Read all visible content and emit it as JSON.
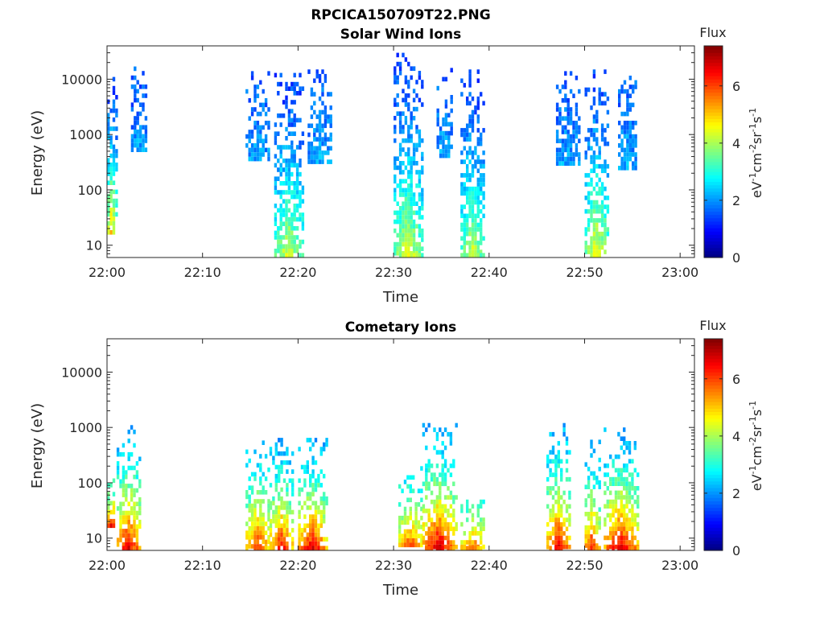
{
  "figure": {
    "title": "RPCICA150709T22.PNG"
  },
  "chart_data": [
    {
      "type": "heatmap",
      "title": "Solar Wind Ions",
      "xlabel": "Time",
      "ylabel": "Energy (eV)",
      "x_ticks": [
        "22:00",
        "22:10",
        "22:20",
        "22:30",
        "22:40",
        "22:50",
        "23:00"
      ],
      "x_range_minutes": [
        0,
        61.5
      ],
      "y_ticks": [
        "10",
        "100",
        "1000",
        "10000"
      ],
      "y_scale": "log",
      "y_range": [
        6,
        40000
      ],
      "colorbar": {
        "label": "Flux",
        "unit": "eV-1cm-2sr-1s-1",
        "ticks": [
          "0",
          "2",
          "4",
          "6"
        ],
        "range": [
          0,
          7.4
        ]
      },
      "bursts": [
        {
          "t_start": 0.0,
          "t_end": 1.0,
          "e_min": 18,
          "e_max": 16000,
          "flux_low": 5.2,
          "flux_high": 1.3
        },
        {
          "t_start": 2.5,
          "t_end": 4.2,
          "e_min": 500,
          "e_max": 17000,
          "flux_low": 2.3,
          "flux_high": 1.5
        },
        {
          "t_start": 14.5,
          "t_end": 17.0,
          "e_min": 350,
          "e_max": 14000,
          "flux_low": 2.2,
          "flux_high": 1.6
        },
        {
          "t_start": 17.5,
          "t_end": 20.5,
          "e_min": 6,
          "e_max": 13000,
          "flux_low": 4.5,
          "flux_high": 1.4
        },
        {
          "t_start": 21.0,
          "t_end": 23.5,
          "e_min": 300,
          "e_max": 15000,
          "flux_low": 2.3,
          "flux_high": 1.6
        },
        {
          "t_start": 30.0,
          "t_end": 33.0,
          "e_min": 6,
          "e_max": 30000,
          "flux_low": 4.6,
          "flux_high": 1.4
        },
        {
          "t_start": 34.5,
          "t_end": 36.0,
          "e_min": 400,
          "e_max": 16000,
          "flux_low": 2.3,
          "flux_high": 1.6
        },
        {
          "t_start": 37.0,
          "t_end": 39.5,
          "e_min": 6,
          "e_max": 15000,
          "flux_low": 4.4,
          "flux_high": 1.4
        },
        {
          "t_start": 47.0,
          "t_end": 49.5,
          "e_min": 300,
          "e_max": 14000,
          "flux_low": 2.2,
          "flux_high": 1.6
        },
        {
          "t_start": 50.0,
          "t_end": 52.5,
          "e_min": 6,
          "e_max": 15000,
          "flux_low": 4.8,
          "flux_high": 1.4
        },
        {
          "t_start": 53.5,
          "t_end": 55.5,
          "e_min": 250,
          "e_max": 14000,
          "flux_low": 2.3,
          "flux_high": 1.6
        }
      ]
    },
    {
      "type": "heatmap",
      "title": "Cometary Ions",
      "xlabel": "Time",
      "ylabel": "Energy (eV)",
      "x_ticks": [
        "22:00",
        "22:10",
        "22:20",
        "22:30",
        "22:40",
        "22:50",
        "23:00"
      ],
      "x_range_minutes": [
        0,
        61.5
      ],
      "y_ticks": [
        "10",
        "100",
        "1000",
        "10000"
      ],
      "y_scale": "log",
      "y_range": [
        6,
        40000
      ],
      "colorbar": {
        "label": "Flux",
        "unit": "eV-1cm-2sr-1s-1",
        "ticks": [
          "0",
          "2",
          "4",
          "6"
        ],
        "range": [
          0,
          7.4
        ]
      },
      "bursts": [
        {
          "t_start": 0.0,
          "t_end": 1.0,
          "e_min": 18,
          "e_max": 120,
          "flux_low": 6.8,
          "flux_high": 3.0
        },
        {
          "t_start": 1.0,
          "t_end": 3.5,
          "e_min": 6,
          "e_max": 1100,
          "flux_low": 7.0,
          "flux_high": 2.2
        },
        {
          "t_start": 14.5,
          "t_end": 17.0,
          "e_min": 6,
          "e_max": 700,
          "flux_low": 6.5,
          "flux_high": 2.2
        },
        {
          "t_start": 17.0,
          "t_end": 19.5,
          "e_min": 6,
          "e_max": 650,
          "flux_low": 6.8,
          "flux_high": 2.2
        },
        {
          "t_start": 20.0,
          "t_end": 23.0,
          "e_min": 6,
          "e_max": 650,
          "flux_low": 7.1,
          "flux_high": 2.2
        },
        {
          "t_start": 30.5,
          "t_end": 33.0,
          "e_min": 8,
          "e_max": 200,
          "flux_low": 6.0,
          "flux_high": 2.6
        },
        {
          "t_start": 33.0,
          "t_end": 36.5,
          "e_min": 6,
          "e_max": 1200,
          "flux_low": 7.2,
          "flux_high": 2.2
        },
        {
          "t_start": 37.0,
          "t_end": 39.5,
          "e_min": 6,
          "e_max": 60,
          "flux_low": 6.3,
          "flux_high": 3.0
        },
        {
          "t_start": 46.0,
          "t_end": 48.5,
          "e_min": 6,
          "e_max": 1200,
          "flux_low": 7.0,
          "flux_high": 2.2
        },
        {
          "t_start": 50.0,
          "t_end": 51.5,
          "e_min": 6,
          "e_max": 600,
          "flux_low": 6.8,
          "flux_high": 2.2
        },
        {
          "t_start": 52.0,
          "t_end": 55.5,
          "e_min": 6,
          "e_max": 1000,
          "flux_low": 7.2,
          "flux_high": 2.2
        }
      ]
    }
  ]
}
